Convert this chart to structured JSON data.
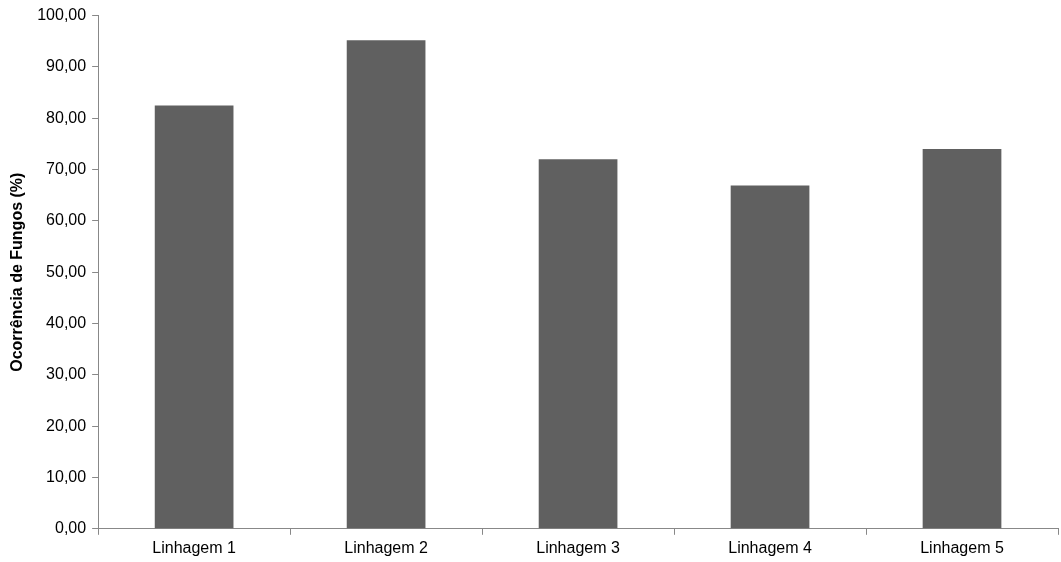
{
  "chart_data": {
    "type": "bar",
    "ylabel": "Ocorrência de Fungos (%)",
    "categories": [
      "Linhagem 1",
      "Linhagem 2",
      "Linhagem 3",
      "Linhagem 4",
      "Linhagem 5"
    ],
    "values": [
      82.5,
      95.2,
      72.0,
      66.9,
      74.0
    ],
    "color": "#606060",
    "ylim": [
      0,
      100
    ],
    "yticks": [
      {
        "value": 0,
        "label": "0,00"
      },
      {
        "value": 10,
        "label": "10,00"
      },
      {
        "value": 20,
        "label": "20,00"
      },
      {
        "value": 30,
        "label": "30,00"
      },
      {
        "value": 40,
        "label": "40,00"
      },
      {
        "value": 50,
        "label": "50,00"
      },
      {
        "value": 60,
        "label": "60,00"
      },
      {
        "value": 70,
        "label": "70,00"
      },
      {
        "value": 80,
        "label": "80,00"
      },
      {
        "value": 90,
        "label": "90,00"
      },
      {
        "value": 100,
        "label": "100,00"
      }
    ],
    "grid": false,
    "legend": false
  }
}
